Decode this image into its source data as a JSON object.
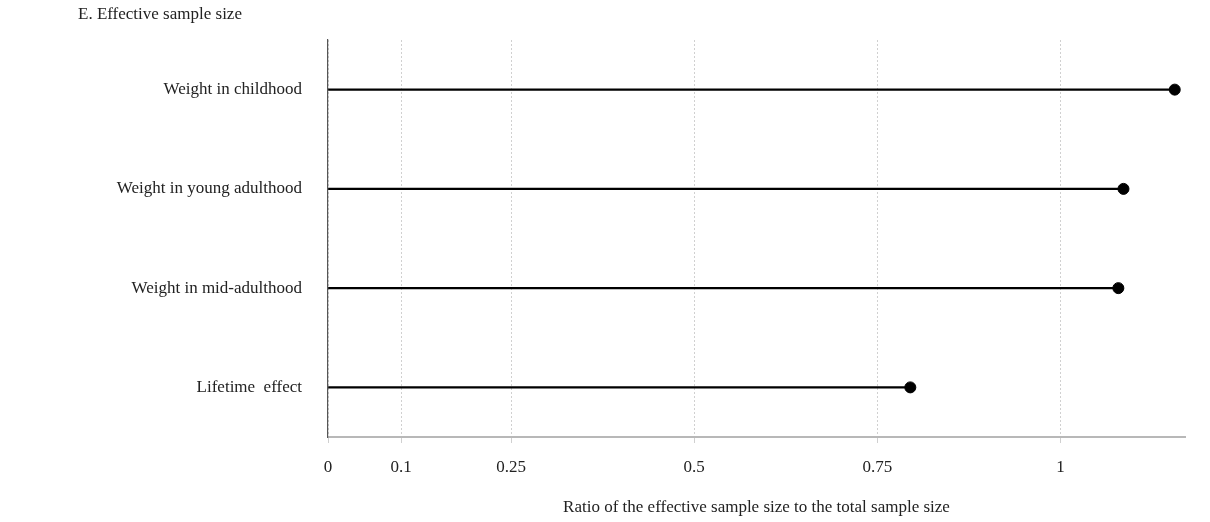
{
  "chart_data": {
    "type": "lollipop",
    "orientation": "horizontal",
    "title": "E. Effective sample size",
    "xlabel": "Ratio of the effective sample size to the total sample size",
    "categories": [
      "Weight in childhood",
      "Weight in young adulthood",
      "Weight in mid-adulthood",
      "Lifetime  effect"
    ],
    "values": [
      1.156,
      1.086,
      1.079,
      0.795
    ],
    "color": "#000000",
    "xlim": [
      0,
      1.17
    ],
    "xticks": [
      0,
      0.1,
      0.25,
      0.5,
      0.75,
      1
    ],
    "grid": "x",
    "marker": "circle"
  }
}
